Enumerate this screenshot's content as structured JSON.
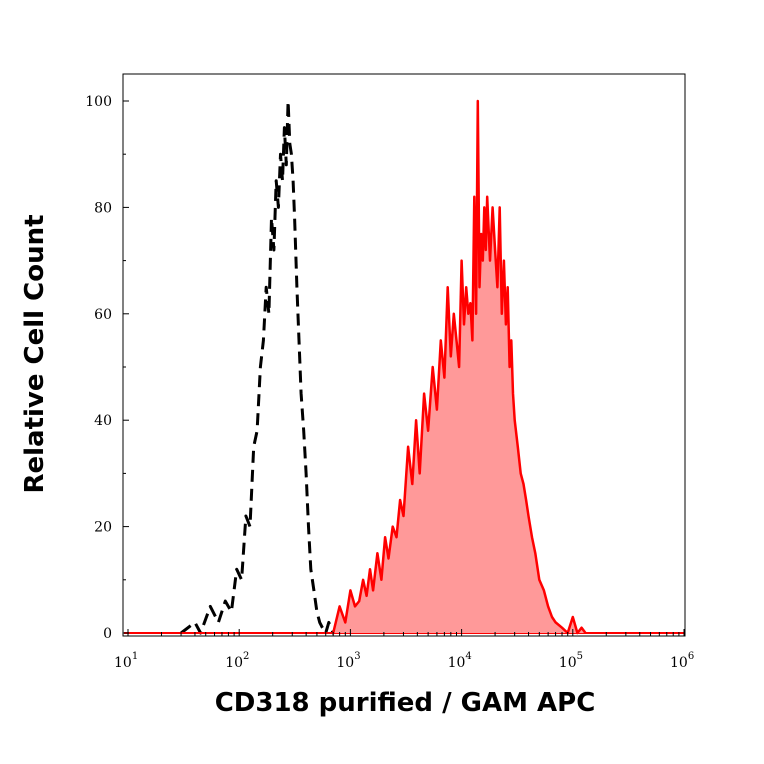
{
  "chart_data": {
    "type": "area",
    "title": "",
    "xlabel": "CD318 purified / GAM APC",
    "ylabel": "Relative Cell Count",
    "x_scale": "log",
    "xlim": [
      10,
      1000000
    ],
    "ylim": [
      0,
      100
    ],
    "x_ticks": [
      {
        "base": "10",
        "exp": "1",
        "value": 10
      },
      {
        "base": "10",
        "exp": "2",
        "value": 100
      },
      {
        "base": "10",
        "exp": "3",
        "value": 1000
      },
      {
        "base": "10",
        "exp": "4",
        "value": 10000
      },
      {
        "base": "10",
        "exp": "5",
        "value": 100000
      },
      {
        "base": "10",
        "exp": "6",
        "value": 1000000
      }
    ],
    "y_ticks": [
      "0",
      "20",
      "40",
      "60",
      "80",
      "100"
    ],
    "grid": false,
    "series": [
      {
        "style": "dashed-outline",
        "color": "#000000",
        "x": [
          30,
          40,
          45,
          55,
          65,
          75,
          85,
          95,
          105,
          115,
          125,
          135,
          145,
          155,
          165,
          175,
          185,
          195,
          205,
          215,
          225,
          235,
          245,
          255,
          265,
          275,
          285,
          295,
          305,
          315,
          330,
          345,
          360,
          380,
          400,
          420,
          440,
          470,
          500,
          530,
          560,
          600,
          640,
          700,
          760,
          850
        ],
        "y": [
          0,
          2,
          0,
          5,
          2,
          6,
          4,
          12,
          10,
          22,
          20,
          35,
          38,
          50,
          55,
          65,
          60,
          78,
          72,
          85,
          80,
          90,
          85,
          95,
          88,
          100,
          92,
          90,
          85,
          78,
          65,
          55,
          45,
          38,
          30,
          20,
          12,
          8,
          4,
          2,
          1,
          0,
          2,
          0,
          1,
          0
        ]
      },
      {
        "style": "filled",
        "color": "#ff0000",
        "fill": "#ff9999",
        "x": [
          700,
          800,
          900,
          1000,
          1100,
          1200,
          1300,
          1400,
          1500,
          1600,
          1750,
          1900,
          2050,
          2200,
          2400,
          2600,
          2800,
          3000,
          3300,
          3600,
          3900,
          4200,
          4600,
          5000,
          5500,
          6000,
          6500,
          7000,
          7500,
          8000,
          8500,
          9000,
          9500,
          10000,
          10500,
          11000,
          11500,
          12000,
          12500,
          13000,
          13500,
          14000,
          14500,
          15000,
          15500,
          16000,
          16500,
          17000,
          18000,
          19000,
          20000,
          21000,
          22000,
          23000,
          24000,
          25000,
          26000,
          27000,
          28000,
          29000,
          30000,
          32000,
          34000,
          36000,
          38000,
          40000,
          43000,
          46000,
          50000,
          55000,
          60000,
          65000,
          70000,
          80000,
          90000,
          100000,
          110000,
          120000,
          130000
        ],
        "y": [
          0,
          5,
          2,
          8,
          5,
          6,
          10,
          7,
          12,
          8,
          15,
          10,
          18,
          14,
          20,
          18,
          25,
          22,
          35,
          28,
          40,
          30,
          45,
          38,
          50,
          42,
          55,
          48,
          65,
          52,
          60,
          55,
          50,
          70,
          58,
          65,
          60,
          62,
          55,
          82,
          60,
          100,
          65,
          75,
          70,
          80,
          72,
          82,
          70,
          80,
          72,
          65,
          80,
          60,
          70,
          58,
          65,
          50,
          55,
          45,
          40,
          35,
          30,
          28,
          25,
          22,
          18,
          15,
          10,
          8,
          5,
          3,
          2,
          1,
          0,
          3,
          0,
          1,
          0
        ]
      }
    ]
  }
}
